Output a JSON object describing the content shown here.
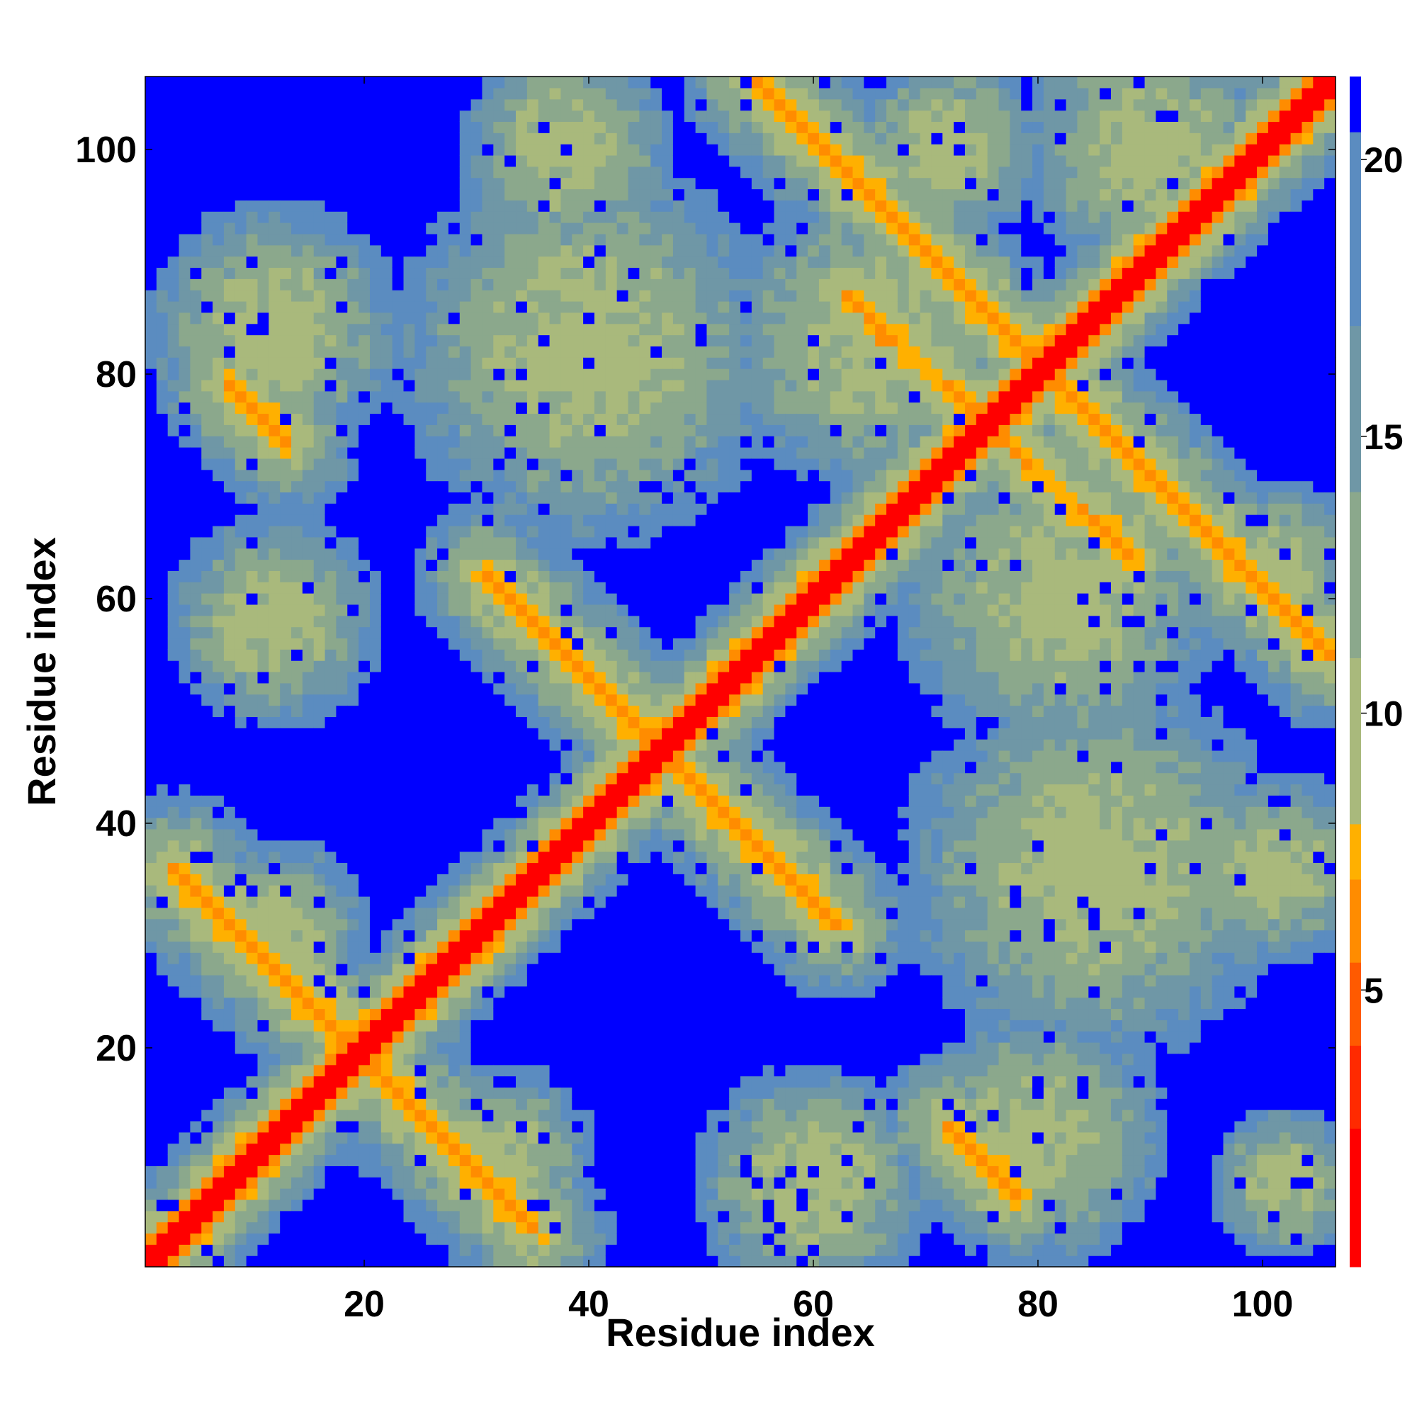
{
  "chart_data": {
    "type": "heatmap",
    "title": "",
    "xlabel": "Residue index",
    "ylabel": "Residue index",
    "n_residues": 106,
    "xlim": [
      0.5,
      106.5
    ],
    "ylim": [
      0.5,
      106.5
    ],
    "x_ticks": [
      20,
      40,
      60,
      80,
      100
    ],
    "y_ticks": [
      20,
      40,
      60,
      80,
      100
    ],
    "colorbar": {
      "range": [
        0,
        21.5
      ],
      "ticks": [
        5,
        10,
        15,
        20
      ],
      "colors": [
        "#ff0000",
        "#ff2a00",
        "#ff5a00",
        "#ff8c00",
        "#ffb000",
        "#a9b97c",
        "#8ba88c",
        "#6f97a6",
        "#5b8cc0",
        "#0000ff"
      ],
      "boundaries": [
        0,
        2.5,
        4,
        5.5,
        7,
        8,
        11,
        14,
        17,
        20.5,
        21.5
      ]
    },
    "diagonal": "red (distance < 2.5)",
    "background": "blue (distance > 20.5)",
    "contact_segments": [
      {
        "name": "anti-diagonal 1-40",
        "from": [
          3,
          36
        ],
        "to": [
          35,
          4
        ],
        "value": 6
      },
      {
        "name": "anti-diagonal 30-60",
        "from": [
          31,
          62
        ],
        "to": [
          62,
          31
        ],
        "value": 6.5
      },
      {
        "name": "anti-diagonal 56-106",
        "from": [
          55,
          106
        ],
        "to": [
          106,
          55
        ],
        "value": 6.5
      },
      {
        "name": "parallel band",
        "from": [
          8,
          79
        ],
        "to": [
          13,
          74
        ],
        "value": 6.5
      },
      {
        "name": "parallel band",
        "from": [
          72,
          13
        ],
        "to": [
          78,
          7
        ],
        "value": 6.5
      },
      {
        "name": "off-diagonal",
        "from": [
          63,
          87
        ],
        "to": [
          88,
          64
        ],
        "value": 6.5
      }
    ],
    "grey_blobs": [
      {
        "center": [
          12,
          84
        ],
        "radius": 12
      },
      {
        "center": [
          40,
          82
        ],
        "radius": 18
      },
      {
        "center": [
          65,
          83
        ],
        "radius": 14
      },
      {
        "center": [
          38,
          100
        ],
        "radius": 10
      },
      {
        "center": [
          72,
          100
        ],
        "radius": 9
      },
      {
        "center": [
          90,
          100
        ],
        "radius": 12
      },
      {
        "center": [
          12,
          58
        ],
        "radius": 10
      },
      {
        "center": [
          82,
          60
        ],
        "radius": 15
      },
      {
        "center": [
          101,
          62
        ],
        "radius": 9
      },
      {
        "center": [
          12,
          30
        ],
        "radius": 9
      },
      {
        "center": [
          85,
          36
        ],
        "radius": 18
      },
      {
        "center": [
          101,
          36
        ],
        "radius": 9
      },
      {
        "center": [
          32,
          10
        ],
        "radius": 9
      },
      {
        "center": [
          60,
          8
        ],
        "radius": 11
      },
      {
        "center": [
          80,
          12
        ],
        "radius": 12
      },
      {
        "center": [
          102,
          8
        ],
        "radius": 7
      }
    ]
  }
}
